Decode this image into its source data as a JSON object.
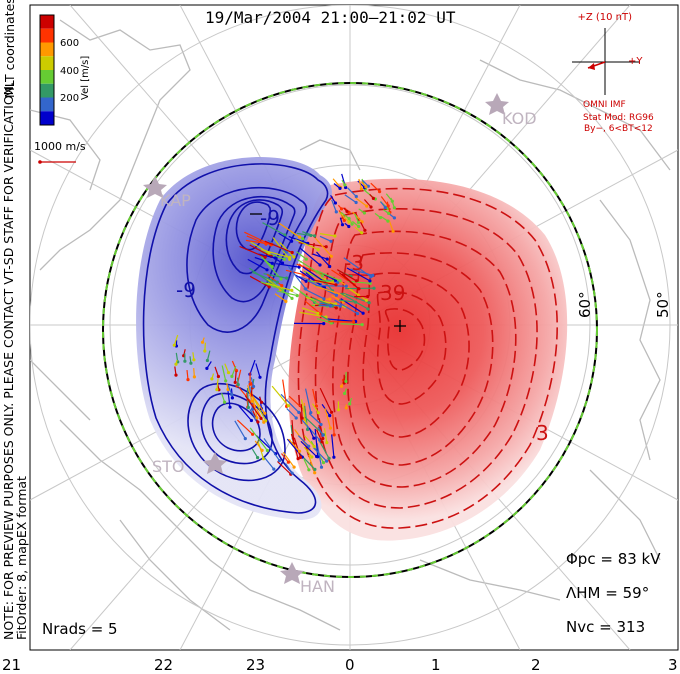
{
  "title": "19/Mar/2004 21:00–21:02 UT",
  "coordinates_label": "MLT coordinates",
  "note_line1": "NOTE: FOR PREVIEW PURPOSES ONLY. PLEASE CONTACT VT-SD STAFF FOR VERIFICATION.",
  "note_line2": "FitOrder: 8, mapEX format",
  "colorbar": {
    "label": "Vel [m/s]",
    "ticks": [
      "600",
      "400",
      "200"
    ],
    "colors": [
      "#0000cc",
      "#3366cc",
      "#339966",
      "#66cc33",
      "#cccc00",
      "#ff9900",
      "#ff3300",
      "#cc0000"
    ]
  },
  "velocity_scale_label": "1000 m/s",
  "imf": {
    "title": "+Z (10 nT)",
    "y_label": "+Y",
    "name": "OMNI IMF",
    "model": "Stat Mod: RG96",
    "condition": "By−, 6<BT<12"
  },
  "mlt_labels": [
    "21",
    "22",
    "23",
    "0",
    "1",
    "2",
    "3"
  ],
  "lat_labels": [
    "60°",
    "50°"
  ],
  "stations": [
    "KOD",
    "KAP",
    "STO",
    "HAN"
  ],
  "contour_labels": [
    "-9",
    "-9",
    "-3",
    "39",
    "3",
    "-3"
  ],
  "stats": {
    "phi_pc_label": "Φpc",
    "phi_pc_value": "= 83 kV",
    "lambda_hm_label": "ΛHM",
    "lambda_hm_value": "= 59°",
    "n_vc_label": "Nvc",
    "n_vc_value": "= 313",
    "n_rads_label": "Nrads",
    "n_rads_value": "= 5"
  },
  "theme": {
    "positive_cell": "#e83a3a",
    "negative_cell": "#4b4bcf",
    "contour_pos": "#cc1111",
    "contour_neg": "#1111aa",
    "grid": "#c8c8c8",
    "coast": "#bbbbbb",
    "hmb": "#66cc33",
    "annot_red": "#cc0000"
  }
}
